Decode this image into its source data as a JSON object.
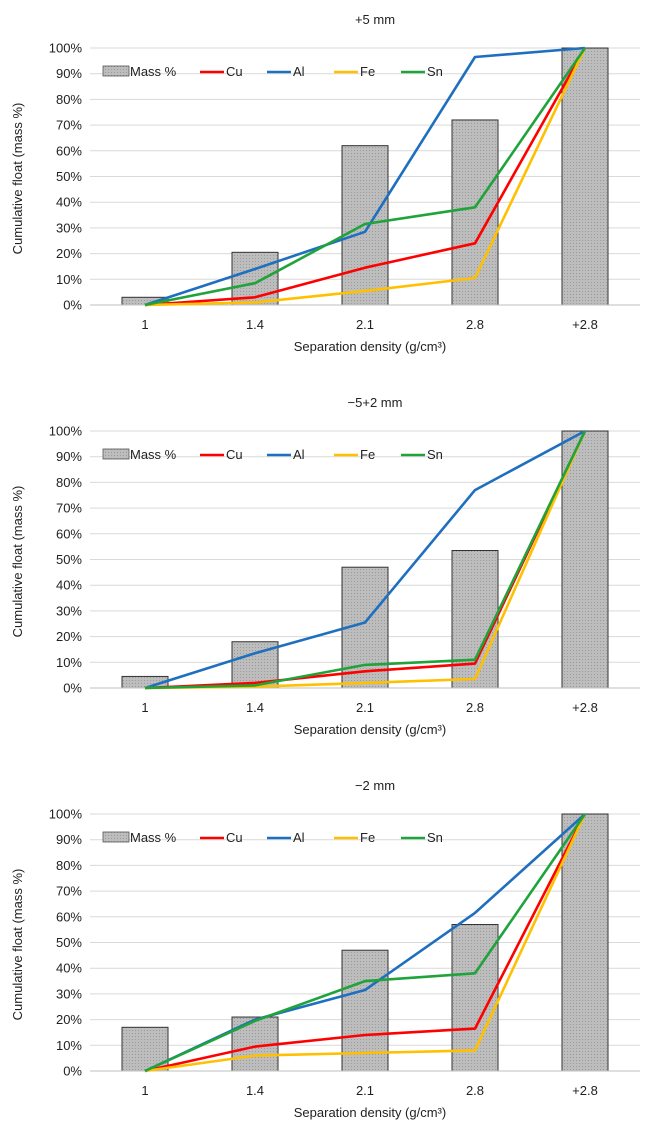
{
  "chart_data": [
    {
      "type": "bar",
      "title": "+5 mm",
      "xlabel": "Separation density (g/cm³)",
      "ylabel": "Cumulative float (mass %)",
      "ylim": [
        0,
        100
      ],
      "yticks": [
        "0%",
        "10%",
        "20%",
        "30%",
        "40%",
        "50%",
        "60%",
        "70%",
        "80%",
        "90%",
        "100%"
      ],
      "categories": [
        "1",
        "1.4",
        "2.1",
        "2.8",
        "+2.8"
      ],
      "grid": true,
      "legend": "top-left",
      "bar_series": {
        "name": "Mass %",
        "values": [
          3,
          20.5,
          62,
          72,
          100
        ],
        "color": "#bdbdbd"
      },
      "series": [
        {
          "name": "Cu",
          "color": "#ff0000",
          "values": [
            0,
            3,
            14.5,
            24,
            100
          ]
        },
        {
          "name": "Al",
          "color": "#1f6fbf",
          "values": [
            0,
            14,
            28.5,
            96.5,
            100
          ]
        },
        {
          "name": "Fe",
          "color": "#ffc000",
          "values": [
            0,
            1,
            5.5,
            10.5,
            100
          ]
        },
        {
          "name": "Sn",
          "color": "#1fa33a",
          "values": [
            0,
            8.5,
            31.5,
            38,
            100
          ]
        }
      ]
    },
    {
      "type": "bar",
      "title": "−5+2 mm",
      "xlabel": "Separation density (g/cm³)",
      "ylabel": "Cumulative float (mass %)",
      "ylim": [
        0,
        100
      ],
      "yticks": [
        "0%",
        "10%",
        "20%",
        "30%",
        "40%",
        "50%",
        "60%",
        "70%",
        "80%",
        "90%",
        "100%"
      ],
      "categories": [
        "1",
        "1.4",
        "2.1",
        "2.8",
        "+2.8"
      ],
      "grid": true,
      "legend": "top-left",
      "bar_series": {
        "name": "Mass %",
        "values": [
          4.5,
          18,
          47,
          53.5,
          100
        ],
        "color": "#bdbdbd"
      },
      "series": [
        {
          "name": "Cu",
          "color": "#ff0000",
          "values": [
            0,
            2,
            6.5,
            9.5,
            100
          ]
        },
        {
          "name": "Al",
          "color": "#1f6fbf",
          "values": [
            0,
            13.5,
            25.5,
            77,
            100
          ]
        },
        {
          "name": "Fe",
          "color": "#ffc000",
          "values": [
            0,
            0.5,
            2,
            3.5,
            100
          ]
        },
        {
          "name": "Sn",
          "color": "#1fa33a",
          "values": [
            0,
            1,
            9,
            11,
            100
          ]
        }
      ]
    },
    {
      "type": "bar",
      "title": "−2 mm",
      "xlabel": "Separation density (g/cm³)",
      "ylabel": "Cumulative float (mass %)",
      "ylim": [
        0,
        100
      ],
      "yticks": [
        "0%",
        "10%",
        "20%",
        "30%",
        "40%",
        "50%",
        "60%",
        "70%",
        "80%",
        "90%",
        "100%"
      ],
      "categories": [
        "1",
        "1.4",
        "2.1",
        "2.8",
        "+2.8"
      ],
      "grid": true,
      "legend": "top-left",
      "bar_series": {
        "name": "Mass %",
        "values": [
          17,
          21,
          47,
          57,
          100
        ],
        "color": "#bdbdbd"
      },
      "series": [
        {
          "name": "Cu",
          "color": "#ff0000",
          "values": [
            0,
            9.5,
            14,
            16.5,
            100
          ]
        },
        {
          "name": "Al",
          "color": "#1f6fbf",
          "values": [
            0,
            20,
            31.5,
            61.5,
            100
          ]
        },
        {
          "name": "Fe",
          "color": "#ffc000",
          "values": [
            0,
            6,
            7,
            8,
            100
          ]
        },
        {
          "name": "Sn",
          "color": "#1fa33a",
          "values": [
            0,
            19.5,
            35,
            38,
            100
          ]
        }
      ]
    }
  ]
}
